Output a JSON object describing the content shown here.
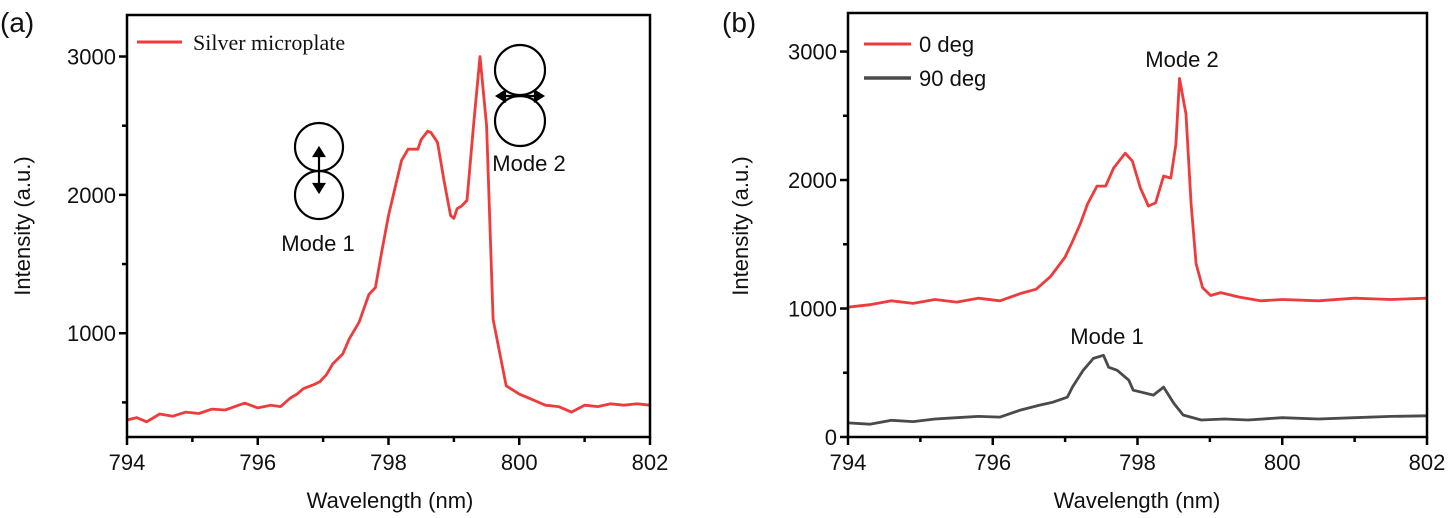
{
  "chart_data": [
    {
      "panel": "(a)",
      "type": "line",
      "title": "",
      "xlabel": "Wavelength (nm)",
      "ylabel": "Intensity (a.u.)",
      "xlim": [
        794,
        802
      ],
      "ylim": [
        250,
        3300
      ],
      "xticks": [
        794,
        796,
        798,
        800,
        802
      ],
      "yticks": [
        1000,
        2000,
        3000
      ],
      "grid": false,
      "legend_position": "top-left",
      "series": [
        {
          "name": "Silver microplate",
          "color": "#ef3b3b",
          "x": [
            794.0,
            794.15,
            794.3,
            794.5,
            794.7,
            794.9,
            795.1,
            795.3,
            795.5,
            795.65,
            795.8,
            796.0,
            796.2,
            796.35,
            796.5,
            796.6,
            796.7,
            796.84,
            796.95,
            797.05,
            797.15,
            797.3,
            797.4,
            797.55,
            797.7,
            797.8,
            797.9,
            798.0,
            798.1,
            798.2,
            798.3,
            798.45,
            798.5,
            798.6,
            798.65,
            798.75,
            798.85,
            798.95,
            799.0,
            799.05,
            799.12,
            799.2,
            799.3,
            799.4,
            799.5,
            799.6,
            799.8,
            800.0,
            800.2,
            800.4,
            800.6,
            800.8,
            801.0,
            801.2,
            801.4,
            801.6,
            801.8,
            802.0
          ],
          "y": [
            373,
            390,
            360,
            416,
            400,
            430,
            420,
            452,
            445,
            470,
            495,
            460,
            480,
            470,
            532,
            560,
            600,
            625,
            650,
            700,
            780,
            850,
            960,
            1080,
            1280,
            1330,
            1600,
            1850,
            2050,
            2250,
            2330,
            2330,
            2400,
            2460,
            2450,
            2380,
            2100,
            1850,
            1830,
            1900,
            1920,
            1960,
            2500,
            3000,
            2500,
            1100,
            620,
            560,
            520,
            480,
            470,
            430,
            480,
            470,
            490,
            480,
            490,
            480
          ]
        }
      ],
      "annotations": [
        {
          "text": "Mode 1",
          "icon": "vertical-dipole-icon"
        },
        {
          "text": "Mode 2",
          "icon": "horizontal-dipole-icon"
        }
      ]
    },
    {
      "panel": "(b)",
      "type": "line",
      "title": "",
      "xlabel": "Wavelength (nm)",
      "ylabel": "Intensity (a.u.)",
      "xlim": [
        794,
        802
      ],
      "ylim": [
        0,
        3300
      ],
      "xticks": [
        794,
        796,
        798,
        800,
        802
      ],
      "yticks": [
        0,
        1000,
        2000,
        3000
      ],
      "grid": false,
      "legend_position": "top-left",
      "series": [
        {
          "name": "0 deg",
          "color": "#ef3b3b",
          "x": [
            794.0,
            794.3,
            794.6,
            794.9,
            795.2,
            795.5,
            795.8,
            796.1,
            796.4,
            796.6,
            796.8,
            797.0,
            797.1,
            797.21,
            797.31,
            797.44,
            797.56,
            797.67,
            797.83,
            797.93,
            798.04,
            798.15,
            798.25,
            798.36,
            798.46,
            798.53,
            798.58,
            798.67,
            798.74,
            798.81,
            798.9,
            799.01,
            799.15,
            799.4,
            799.7,
            800.0,
            800.5,
            801.0,
            801.5,
            802.0
          ],
          "y": [
            1010,
            1030,
            1060,
            1040,
            1070,
            1050,
            1080,
            1060,
            1120,
            1150,
            1250,
            1400,
            1520,
            1659,
            1814,
            1953,
            1953,
            2093,
            2209,
            2147,
            1938,
            1798,
            1822,
            2031,
            2015,
            2279,
            2791,
            2512,
            1814,
            1349,
            1163,
            1101,
            1124,
            1090,
            1060,
            1070,
            1060,
            1080,
            1070,
            1080
          ]
        },
        {
          "name": "90 deg",
          "color": "#4a4a4a",
          "x": [
            794.0,
            794.3,
            794.6,
            794.9,
            795.2,
            795.5,
            795.8,
            796.1,
            796.38,
            796.65,
            796.83,
            797.03,
            797.1,
            797.25,
            797.39,
            797.53,
            797.6,
            797.72,
            797.88,
            797.94,
            798.22,
            798.36,
            798.5,
            798.63,
            798.88,
            799.2,
            799.53,
            800.0,
            800.5,
            801.0,
            801.5,
            802.0
          ],
          "y": [
            110,
            100,
            130,
            120,
            140,
            150,
            160,
            155,
            209,
            248,
            271,
            310,
            388,
            519,
            612,
            636,
            543,
            519,
            442,
            364,
            326,
            388,
            264,
            171,
            132,
            140,
            132,
            150,
            140,
            150,
            160,
            165
          ]
        }
      ],
      "annotations": [
        {
          "text": "Mode 2"
        },
        {
          "text": "Mode 1"
        }
      ]
    }
  ],
  "panels": {
    "a": {
      "label": "(a)",
      "legend": "Silver microplate",
      "mode1": "Mode 1",
      "mode2": "Mode 2"
    },
    "b": {
      "label": "(b)",
      "legend0": "0 deg",
      "legend90": "90 deg",
      "mode1": "Mode 1",
      "mode2": "Mode 2"
    }
  }
}
